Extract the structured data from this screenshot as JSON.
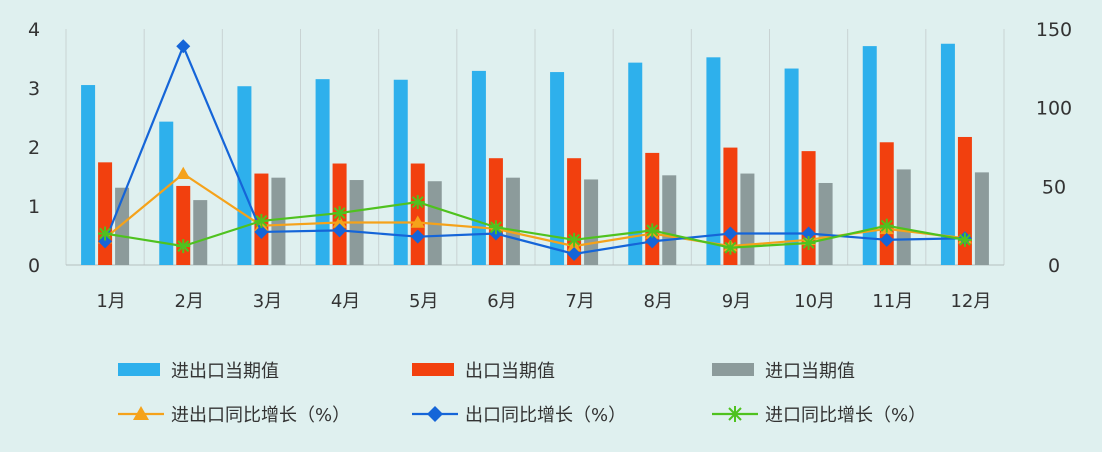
{
  "chart_data": {
    "type": "bar",
    "title": "",
    "categories": [
      "1月",
      "2月",
      "3月",
      "4月",
      "5月",
      "6月",
      "7月",
      "8月",
      "9月",
      "10月",
      "11月",
      "12月"
    ],
    "y_left": {
      "range": [
        0,
        4
      ],
      "ticks": [
        "0",
        "1",
        "2",
        "3",
        "4"
      ]
    },
    "y_right": {
      "range": [
        0,
        150
      ],
      "ticks": [
        "0",
        "50",
        "100",
        "150"
      ]
    },
    "grid": "vertical",
    "legend_position": "bottom",
    "bar_series": [
      {
        "name": "进出口当期值",
        "color": "#2eb0ec",
        "axis": "left",
        "values": [
          3.05,
          2.43,
          3.03,
          3.15,
          3.14,
          3.29,
          3.27,
          3.43,
          3.52,
          3.33,
          3.71,
          3.75
        ]
      },
      {
        "name": "出口当期值",
        "color": "#f2400e",
        "axis": "left",
        "values": [
          1.74,
          1.34,
          1.55,
          1.72,
          1.72,
          1.81,
          1.81,
          1.9,
          1.99,
          1.93,
          2.08,
          2.17
        ]
      },
      {
        "name": "进口当期值",
        "color": "#8c9b9b",
        "axis": "left",
        "values": [
          1.31,
          1.1,
          1.48,
          1.44,
          1.42,
          1.48,
          1.45,
          1.52,
          1.55,
          1.39,
          1.62,
          1.57
        ]
      }
    ],
    "line_series": [
      {
        "name": "进出口同比增长（%）",
        "color": "#f5a21a",
        "marker": "triangle",
        "axis": "right",
        "values": [
          17,
          58,
          25,
          27,
          27,
          23,
          12,
          20,
          12,
          16,
          23,
          17
        ]
      },
      {
        "name": "出口同比增长（%）",
        "color": "#1565d8",
        "marker": "diamond",
        "axis": "right",
        "values": [
          15,
          139,
          21,
          22,
          18,
          20,
          7,
          15,
          20,
          20,
          16,
          17
        ]
      },
      {
        "name": "进口同比增长（%）",
        "color": "#4fc21f",
        "marker": "star",
        "axis": "right",
        "values": [
          20,
          12,
          28,
          33,
          40,
          24,
          16,
          22,
          11,
          14,
          25,
          16
        ]
      }
    ]
  }
}
